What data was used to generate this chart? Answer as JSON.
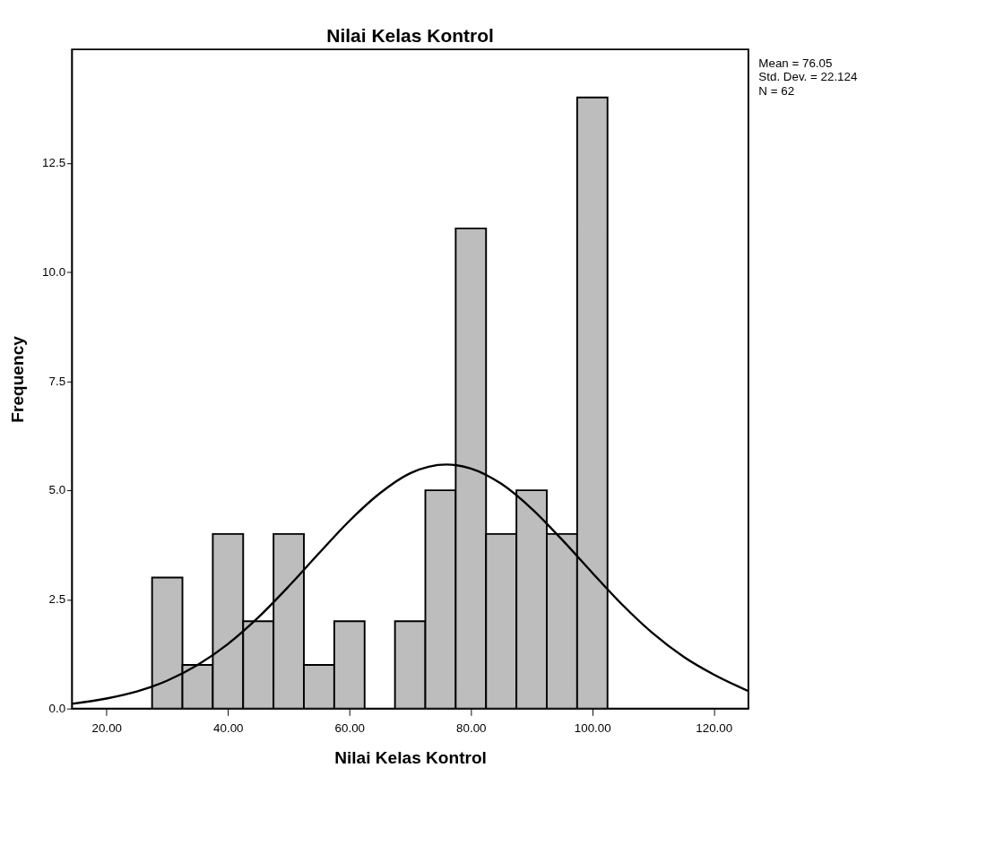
{
  "chart_data": {
    "type": "histogram",
    "title": "Nilai Kelas Kontrol",
    "xlabel": "Nilai Kelas Kontrol",
    "ylabel": "Frequency",
    "bins": [
      27.5,
      32.5,
      37.5,
      42.5,
      47.5,
      52.5,
      57.5,
      62.5,
      67.5,
      72.5,
      77.5,
      82.5,
      87.5,
      92.5,
      97.5,
      102.5
    ],
    "series": [
      {
        "color": "#bdbdbd",
        "values": [
          3,
          1,
          4,
          2,
          4,
          1,
          2,
          0,
          2,
          5,
          11,
          4,
          5,
          4,
          14
        ]
      },
      {
        "type": "line",
        "color": "#000000",
        "x": [
          14.3,
          20,
          25,
          30,
          35,
          40,
          45,
          50,
          55,
          60,
          65,
          70,
          76,
          80,
          85,
          90,
          95,
          100,
          105,
          110,
          115,
          120,
          125.7
        ],
        "values": [
          0.11,
          0.23,
          0.39,
          0.64,
          1.0,
          1.48,
          2.09,
          2.8,
          3.56,
          4.3,
          4.93,
          5.39,
          5.59,
          5.5,
          5.15,
          4.58,
          3.87,
          3.11,
          2.37,
          1.72,
          1.19,
          0.78,
          0.4
        ]
      }
    ],
    "xlim": [
      14.3,
      125.7
    ],
    "ylim": [
      0,
      15.1
    ],
    "xticks": [
      {
        "value": 20,
        "label": "20.00"
      },
      {
        "value": 40,
        "label": "40.00"
      },
      {
        "value": 60,
        "label": "60.00"
      },
      {
        "value": 80,
        "label": "80.00"
      },
      {
        "value": 100,
        "label": "100.00"
      },
      {
        "value": 120,
        "label": "120.00"
      }
    ],
    "yticks": [
      {
        "value": 0,
        "label": "0.0"
      },
      {
        "value": 2.5,
        "label": "2.5"
      },
      {
        "value": 5,
        "label": "5.0"
      },
      {
        "value": 7.5,
        "label": "7.5"
      },
      {
        "value": 10,
        "label": "10.0"
      },
      {
        "value": 12.5,
        "label": "12.5"
      }
    ],
    "annotations": [
      "Mean = 76.05",
      "Std. Dev. = 22.124",
      "N = 62"
    ]
  }
}
